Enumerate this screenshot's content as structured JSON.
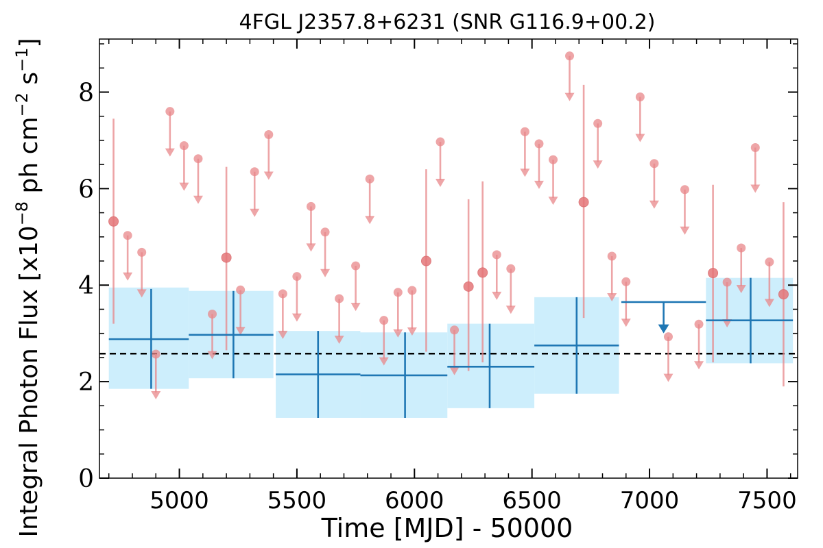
{
  "chart_data": {
    "type": "scatter",
    "title": "4FGL J2357.8+6231 (SNR G116.9+00.2)",
    "xlabel": "Time [MJD] - 50000",
    "ylabel": "Integral Photon Flux [x10",
    "ylabel_exp1": "−8",
    "ylabel_mid": " ph cm",
    "ylabel_exp2": "−2",
    "ylabel_mid2": " s",
    "ylabel_exp3": "−1",
    "ylabel_end": "]",
    "xlim": [
      4660,
      7630
    ],
    "ylim": [
      0,
      9.1
    ],
    "xticks": [
      5000,
      5500,
      6000,
      6500,
      7000,
      7500
    ],
    "xtick_labels": [
      "5000",
      "5500",
      "6000",
      "6500",
      "7000",
      "7500"
    ],
    "yticks": [
      0,
      2,
      4,
      6,
      8
    ],
    "ytick_labels": [
      "0",
      "2",
      "4",
      "6",
      "8"
    ],
    "grid": false,
    "colors": {
      "short_bins": "#e8878a",
      "long_bins": "#1f77b4",
      "long_band": "#cdeefc",
      "mean_line": "#000000"
    },
    "mean_flux": 2.58,
    "long_bins": [
      {
        "x": 4880,
        "xlo": 4700,
        "xhi": 5040,
        "y": 2.88,
        "ylo": 1.85,
        "yhi": 3.92,
        "band_lo": 1.85,
        "band_hi": 3.95,
        "ul": false
      },
      {
        "x": 5230,
        "xlo": 5040,
        "xhi": 5400,
        "y": 2.97,
        "ylo": 2.07,
        "yhi": 3.88,
        "band_lo": 2.07,
        "band_hi": 3.88,
        "ul": false
      },
      {
        "x": 5590,
        "xlo": 5410,
        "xhi": 5770,
        "y": 2.15,
        "ylo": 1.25,
        "yhi": 3.05,
        "band_lo": 1.25,
        "band_hi": 3.05,
        "ul": false
      },
      {
        "x": 5960,
        "xlo": 5770,
        "xhi": 6140,
        "y": 2.13,
        "ylo": 1.25,
        "yhi": 3.02,
        "band_lo": 1.25,
        "band_hi": 3.02,
        "ul": false
      },
      {
        "x": 6320,
        "xlo": 6140,
        "xhi": 6510,
        "y": 2.31,
        "ylo": 1.45,
        "yhi": 3.2,
        "band_lo": 1.45,
        "band_hi": 3.2,
        "ul": false
      },
      {
        "x": 6690,
        "xlo": 6510,
        "xhi": 6870,
        "y": 2.75,
        "ylo": 1.75,
        "yhi": 3.75,
        "band_lo": 1.75,
        "band_hi": 3.75,
        "ul": false
      },
      {
        "x": 7060,
        "xlo": 6880,
        "xhi": 7240,
        "y": 3.65,
        "ul": true,
        "ul_end": 3.0
      },
      {
        "x": 7430,
        "xlo": 7240,
        "xhi": 7610,
        "y": 3.27,
        "ylo": 2.38,
        "yhi": 4.15,
        "band_lo": 2.38,
        "band_hi": 4.15,
        "ul": false
      }
    ],
    "short_points": [
      {
        "x": 4720,
        "y": 5.32,
        "ul": false,
        "ylo": 3.2,
        "yhi": 7.45
      },
      {
        "x": 4780,
        "y": 5.03,
        "ul": true
      },
      {
        "x": 4840,
        "y": 4.68,
        "ul": true
      },
      {
        "x": 4900,
        "y": 2.57,
        "ul": true
      },
      {
        "x": 4960,
        "y": 7.6,
        "ul": true
      },
      {
        "x": 5020,
        "y": 6.89,
        "ul": true
      },
      {
        "x": 5080,
        "y": 6.62,
        "ul": true
      },
      {
        "x": 5140,
        "y": 3.4,
        "ul": true
      },
      {
        "x": 5200,
        "y": 4.57,
        "ul": false,
        "ylo": 2.65,
        "yhi": 6.45
      },
      {
        "x": 5260,
        "y": 3.9,
        "ul": true
      },
      {
        "x": 5320,
        "y": 6.35,
        "ul": true
      },
      {
        "x": 5380,
        "y": 7.12,
        "ul": true
      },
      {
        "x": 5440,
        "y": 3.82,
        "ul": true
      },
      {
        "x": 5500,
        "y": 4.18,
        "ul": true
      },
      {
        "x": 5560,
        "y": 5.63,
        "ul": true
      },
      {
        "x": 5620,
        "y": 5.1,
        "ul": true
      },
      {
        "x": 5680,
        "y": 3.72,
        "ul": true
      },
      {
        "x": 5750,
        "y": 4.4,
        "ul": true
      },
      {
        "x": 5810,
        "y": 6.2,
        "ul": true
      },
      {
        "x": 5870,
        "y": 3.27,
        "ul": true
      },
      {
        "x": 5930,
        "y": 3.85,
        "ul": true
      },
      {
        "x": 5990,
        "y": 3.89,
        "ul": true
      },
      {
        "x": 6050,
        "y": 4.5,
        "ul": false,
        "ylo": 2.62,
        "yhi": 6.4
      },
      {
        "x": 6110,
        "y": 6.97,
        "ul": true
      },
      {
        "x": 6170,
        "y": 3.07,
        "ul": true
      },
      {
        "x": 6230,
        "y": 3.97,
        "ul": false,
        "ylo": 2.22,
        "yhi": 5.78
      },
      {
        "x": 6290,
        "y": 4.26,
        "ul": false,
        "ylo": 2.4,
        "yhi": 6.15
      },
      {
        "x": 6350,
        "y": 4.63,
        "ul": true
      },
      {
        "x": 6410,
        "y": 4.34,
        "ul": true
      },
      {
        "x": 6470,
        "y": 7.18,
        "ul": true
      },
      {
        "x": 6530,
        "y": 6.93,
        "ul": true
      },
      {
        "x": 6590,
        "y": 6.6,
        "ul": true
      },
      {
        "x": 6660,
        "y": 8.75,
        "ul": true
      },
      {
        "x": 6720,
        "y": 5.72,
        "ul": false,
        "ylo": 3.32,
        "yhi": 8.15
      },
      {
        "x": 6780,
        "y": 7.35,
        "ul": true
      },
      {
        "x": 6840,
        "y": 4.6,
        "ul": true
      },
      {
        "x": 6900,
        "y": 4.07,
        "ul": true
      },
      {
        "x": 6960,
        "y": 7.9,
        "ul": true
      },
      {
        "x": 7020,
        "y": 6.52,
        "ul": true
      },
      {
        "x": 7080,
        "y": 2.93,
        "ul": true
      },
      {
        "x": 7150,
        "y": 5.98,
        "ul": true
      },
      {
        "x": 7210,
        "y": 3.19,
        "ul": true
      },
      {
        "x": 7270,
        "y": 4.25,
        "ul": false,
        "ylo": 2.4,
        "yhi": 6.08
      },
      {
        "x": 7330,
        "y": 4.06,
        "ul": true
      },
      {
        "x": 7390,
        "y": 4.77,
        "ul": true
      },
      {
        "x": 7450,
        "y": 6.85,
        "ul": true
      },
      {
        "x": 7510,
        "y": 4.48,
        "ul": true
      },
      {
        "x": 7570,
        "y": 3.81,
        "ul": false,
        "ylo": 1.9,
        "yhi": 5.72
      }
    ]
  }
}
